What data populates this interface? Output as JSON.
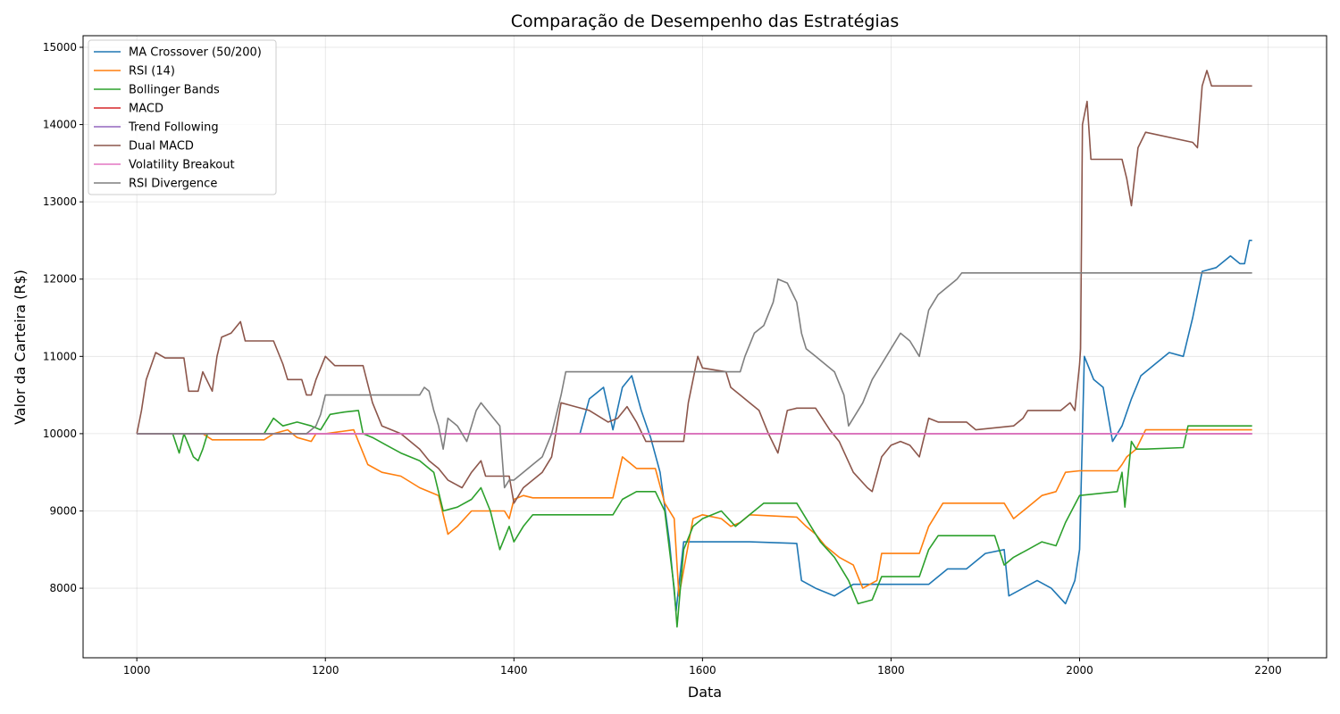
{
  "chart_data": {
    "type": "line",
    "title": "Comparação de Desempenho das Estratégias",
    "xlabel": "Data",
    "ylabel": "Valor da Carteira (R$)",
    "xlim": [
      943,
      2262
    ],
    "ylim": [
      7100,
      15150
    ],
    "xticks": [
      1000,
      1200,
      1400,
      1600,
      1800,
      2000,
      2200
    ],
    "yticks": [
      8000,
      9000,
      10000,
      11000,
      12000,
      13000,
      14000,
      15000
    ],
    "grid": true,
    "legend_position": "top-left",
    "series": [
      {
        "name": "MA Crossover (50/200)",
        "color": "#1f77b4",
        "x": [
          1000,
          1470,
          1480,
          1495,
          1505,
          1515,
          1525,
          1535,
          1545,
          1555,
          1565,
          1572,
          1580,
          1590,
          1650,
          1700,
          1705,
          1720,
          1740,
          1760,
          1840,
          1860,
          1880,
          1900,
          1920,
          1925,
          1940,
          1955,
          1970,
          1985,
          1995,
          2000,
          2005,
          2015,
          2025,
          2035,
          2045,
          2055,
          2065,
          2080,
          2095,
          2110,
          2120,
          2130,
          2145,
          2160,
          2170,
          2175,
          2180,
          2183
        ],
        "y": [
          10000,
          10000,
          10450,
          10600,
          10050,
          10600,
          10750,
          10300,
          9950,
          9500,
          8600,
          7700,
          8600,
          8600,
          8600,
          8580,
          8100,
          8000,
          7900,
          8050,
          8050,
          8250,
          8250,
          8450,
          8500,
          7900,
          8000,
          8100,
          8000,
          7800,
          8100,
          8500,
          11000,
          10700,
          10600,
          9900,
          10100,
          10450,
          10750,
          10900,
          11050,
          11000,
          11500,
          12100,
          12150,
          12300,
          12200,
          12200,
          12500,
          12500
        ]
      },
      {
        "name": "RSI (14)",
        "color": "#ff7f0e",
        "x": [
          1000,
          1070,
          1080,
          1135,
          1145,
          1160,
          1170,
          1185,
          1190,
          1200,
          1230,
          1245,
          1260,
          1280,
          1300,
          1320,
          1330,
          1340,
          1355,
          1370,
          1390,
          1395,
          1400,
          1410,
          1420,
          1505,
          1515,
          1530,
          1550,
          1560,
          1570,
          1575,
          1590,
          1600,
          1620,
          1630,
          1640,
          1650,
          1700,
          1710,
          1720,
          1730,
          1745,
          1760,
          1770,
          1785,
          1790,
          1830,
          1840,
          1855,
          1920,
          1930,
          1945,
          1960,
          1975,
          1985,
          2000,
          2040,
          2045,
          2050,
          2060,
          2070,
          2183
        ],
        "y": [
          10000,
          10000,
          9920,
          9920,
          10000,
          10050,
          9950,
          9900,
          10000,
          10000,
          10050,
          9600,
          9500,
          9450,
          9300,
          9200,
          8700,
          8800,
          9000,
          9000,
          9000,
          8900,
          9150,
          9200,
          9170,
          9170,
          9700,
          9550,
          9550,
          9100,
          8900,
          7900,
          8900,
          8950,
          8900,
          8800,
          8850,
          8950,
          8920,
          8800,
          8700,
          8550,
          8400,
          8300,
          8000,
          8100,
          8450,
          8450,
          8800,
          9100,
          9100,
          8900,
          9050,
          9200,
          9250,
          9500,
          9520,
          9520,
          9600,
          9700,
          9800,
          10050,
          10050
        ]
      },
      {
        "name": "Bollinger Bands",
        "color": "#2ca02c",
        "x": [
          1000,
          1038,
          1045,
          1050,
          1060,
          1065,
          1070,
          1075,
          1135,
          1145,
          1155,
          1170,
          1185,
          1195,
          1205,
          1220,
          1235,
          1240,
          1250,
          1265,
          1280,
          1300,
          1315,
          1325,
          1340,
          1355,
          1365,
          1375,
          1385,
          1395,
          1400,
          1410,
          1420,
          1430,
          1450,
          1505,
          1515,
          1530,
          1540,
          1550,
          1560,
          1570,
          1573,
          1580,
          1590,
          1600,
          1620,
          1635,
          1650,
          1665,
          1700,
          1710,
          1725,
          1740,
          1755,
          1765,
          1780,
          1790,
          1830,
          1840,
          1850,
          1910,
          1920,
          1930,
          1945,
          1960,
          1975,
          1985,
          2000,
          2040,
          2045,
          2048,
          2055,
          2060,
          2070,
          2110,
          2115,
          2183
        ],
        "y": [
          10000,
          10000,
          9750,
          10000,
          9700,
          9650,
          9800,
          10000,
          10000,
          10200,
          10100,
          10150,
          10100,
          10050,
          10250,
          10280,
          10300,
          10000,
          9950,
          9850,
          9750,
          9650,
          9500,
          9000,
          9050,
          9150,
          9300,
          9000,
          8500,
          8800,
          8600,
          8800,
          8950,
          8950,
          8950,
          8950,
          9150,
          9250,
          9250,
          9250,
          9000,
          8000,
          7500,
          8500,
          8800,
          8900,
          9000,
          8800,
          8950,
          9100,
          9100,
          8900,
          8600,
          8400,
          8100,
          7800,
          7850,
          8150,
          8150,
          8500,
          8680,
          8680,
          8300,
          8400,
          8500,
          8600,
          8550,
          8850,
          9200,
          9250,
          9500,
          9050,
          9900,
          9800,
          9800,
          9820,
          10100,
          10100
        ]
      },
      {
        "name": "MACD",
        "color": "#d62728",
        "x": [
          1000,
          2183
        ],
        "y": [
          10000,
          10000
        ]
      },
      {
        "name": "Trend Following",
        "color": "#9467bd",
        "x": [
          1000,
          2183
        ],
        "y": [
          10000,
          10000
        ]
      },
      {
        "name": "Dual MACD",
        "color": "#8c564b",
        "x": [
          1000,
          1005,
          1010,
          1020,
          1030,
          1040,
          1050,
          1055,
          1065,
          1070,
          1080,
          1085,
          1090,
          1100,
          1110,
          1115,
          1125,
          1145,
          1155,
          1160,
          1165,
          1175,
          1180,
          1185,
          1190,
          1200,
          1210,
          1220,
          1240,
          1250,
          1260,
          1280,
          1300,
          1310,
          1320,
          1330,
          1345,
          1355,
          1365,
          1370,
          1380,
          1390,
          1395,
          1400,
          1410,
          1420,
          1430,
          1440,
          1450,
          1465,
          1480,
          1500,
          1510,
          1520,
          1530,
          1540,
          1550,
          1560,
          1580,
          1585,
          1595,
          1600,
          1625,
          1630,
          1640,
          1650,
          1660,
          1670,
          1680,
          1690,
          1700,
          1720,
          1735,
          1745,
          1760,
          1775,
          1780,
          1790,
          1800,
          1810,
          1820,
          1830,
          1840,
          1850,
          1880,
          1890,
          1930,
          1940,
          1945,
          1955,
          1980,
          1990,
          1995,
          2000,
          2001,
          2003,
          2008,
          2012,
          2045,
          2050,
          2055,
          2062,
          2070,
          2120,
          2125,
          2130,
          2135,
          2140,
          2150,
          2170,
          2183
        ],
        "y": [
          10000,
          10300,
          10700,
          11050,
          10980,
          10980,
          10980,
          10550,
          10550,
          10800,
          10550,
          11000,
          11250,
          11300,
          11450,
          11200,
          11200,
          11200,
          10900,
          10700,
          10700,
          10700,
          10500,
          10500,
          10700,
          11000,
          10880,
          10880,
          10880,
          10400,
          10100,
          10000,
          9800,
          9650,
          9550,
          9400,
          9300,
          9500,
          9650,
          9450,
          9450,
          9450,
          9450,
          9100,
          9300,
          9400,
          9500,
          9700,
          10400,
          10350,
          10300,
          10150,
          10200,
          10350,
          10150,
          9900,
          9900,
          9900,
          9900,
          10400,
          11000,
          10850,
          10800,
          10600,
          10500,
          10400,
          10300,
          10000,
          9750,
          10300,
          10330,
          10330,
          10050,
          9900,
          9500,
          9300,
          9250,
          9700,
          9850,
          9900,
          9850,
          9700,
          10200,
          10150,
          10150,
          10050,
          10100,
          10200,
          10300,
          10300,
          10300,
          10400,
          10300,
          10900,
          11100,
          14000,
          14300,
          13550,
          13550,
          13300,
          12950,
          13700,
          13900,
          13770,
          13700,
          14500,
          14700,
          14500,
          14500,
          14500,
          14500
        ]
      },
      {
        "name": "Volatility Breakout",
        "color": "#e377c2",
        "x": [
          1000,
          2183
        ],
        "y": [
          10000,
          10000
        ]
      },
      {
        "name": "RSI Divergence",
        "color": "#7f7f7f",
        "x": [
          1000,
          1180,
          1190,
          1195,
          1200,
          1300,
          1305,
          1310,
          1315,
          1320,
          1325,
          1330,
          1340,
          1350,
          1360,
          1365,
          1375,
          1385,
          1390,
          1395,
          1400,
          1410,
          1420,
          1430,
          1440,
          1450,
          1455,
          1640,
          1645,
          1655,
          1665,
          1675,
          1680,
          1690,
          1700,
          1705,
          1710,
          1720,
          1730,
          1740,
          1750,
          1755,
          1760,
          1770,
          1780,
          1790,
          1800,
          1810,
          1820,
          1830,
          1840,
          1850,
          1860,
          1870,
          1875,
          2183
        ],
        "y": [
          10000,
          10000,
          10100,
          10250,
          10500,
          10500,
          10600,
          10550,
          10300,
          10100,
          9800,
          10200,
          10100,
          9900,
          10300,
          10400,
          10250,
          10100,
          9300,
          9400,
          9400,
          9500,
          9600,
          9700,
          10000,
          10500,
          10800,
          10800,
          11000,
          11300,
          11400,
          11700,
          12000,
          11950,
          11700,
          11300,
          11100,
          11000,
          10900,
          10800,
          10500,
          10100,
          10200,
          10400,
          10700,
          10900,
          11100,
          11300,
          11200,
          11000,
          11600,
          11800,
          11900,
          12000,
          12080,
          12080
        ]
      }
    ]
  }
}
